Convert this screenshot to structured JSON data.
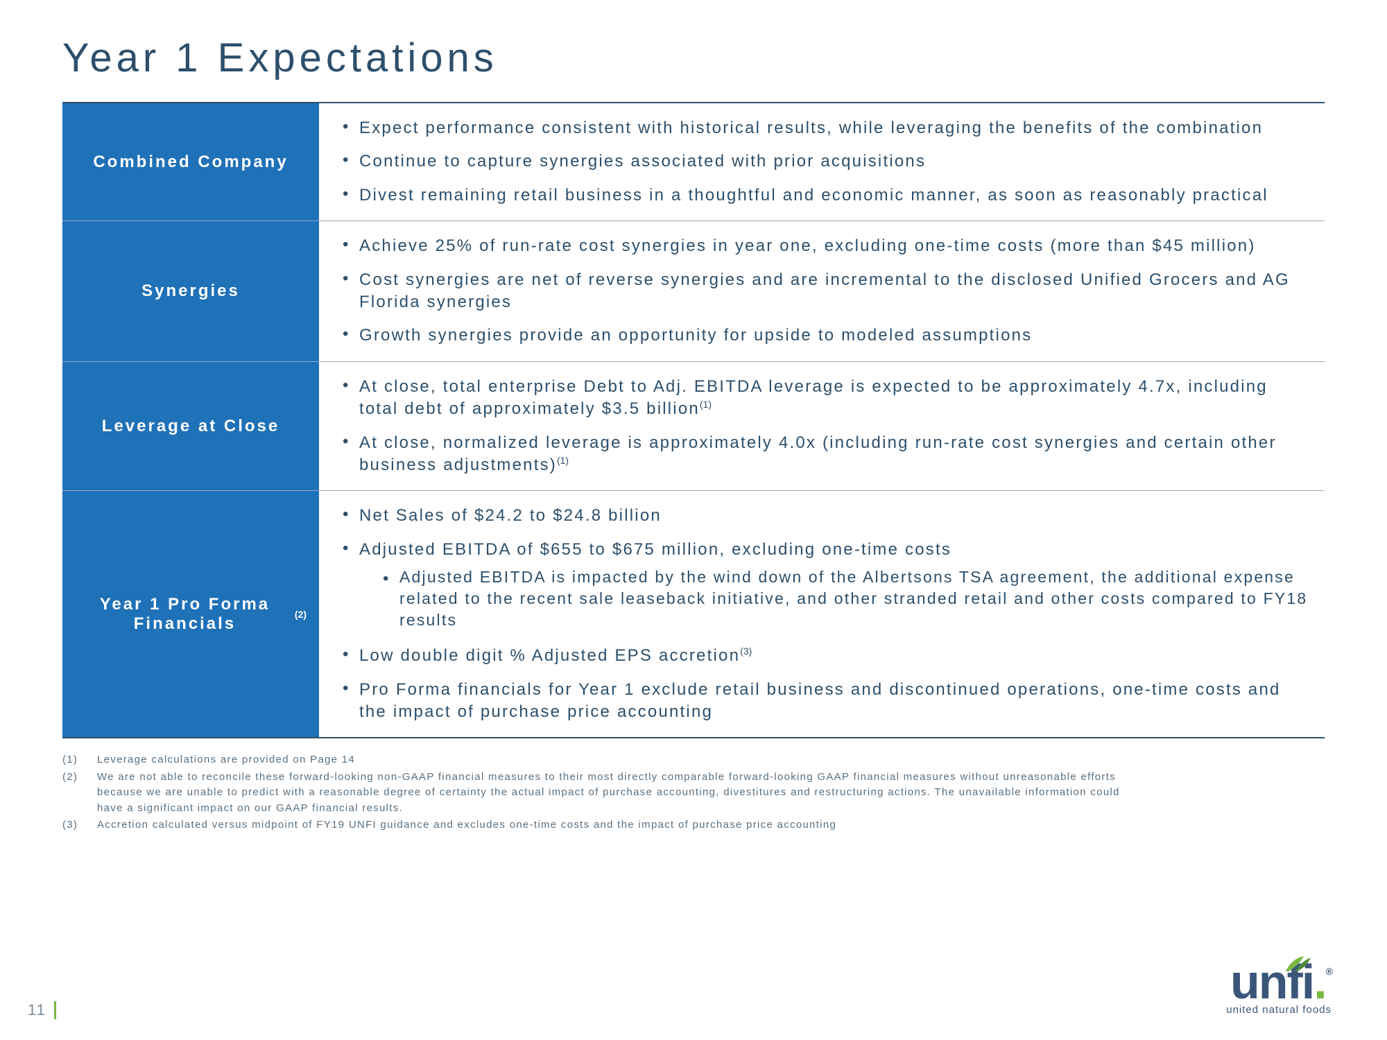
{
  "title": "Year 1 Expectations",
  "rows": [
    {
      "label": "Combined Company",
      "label_sup": "",
      "bullets": [
        {
          "text": "Expect performance consistent with historical results, while leveraging the benefits of the combination"
        },
        {
          "text": "Continue to capture synergies associated with prior acquisitions"
        },
        {
          "text": "Divest remaining retail business in a thoughtful and economic manner, as soon as reasonably practical"
        }
      ]
    },
    {
      "label": "Synergies",
      "label_sup": "",
      "bullets": [
        {
          "text": "Achieve 25% of run-rate cost synergies in year one, excluding one-time costs (more than $45 million)"
        },
        {
          "text": "Cost synergies are net of reverse synergies and are incremental to the disclosed Unified Grocers and AG Florida synergies"
        },
        {
          "text": "Growth synergies provide an opportunity for upside to modeled assumptions"
        }
      ]
    },
    {
      "label": "Leverage at Close",
      "label_sup": "",
      "bullets": [
        {
          "text": "At close, total enterprise Debt to Adj. EBITDA leverage is expected to be approximately 4.7x, including total debt of approximately $3.5 billion",
          "sup": "(1)"
        },
        {
          "text": "At close, normalized leverage is approximately 4.0x (including run-rate cost synergies and certain other business adjustments)",
          "sup": "(1)"
        }
      ]
    },
    {
      "label": "Year 1 Pro Forma Financials",
      "label_sup": "(2)",
      "bullets": [
        {
          "text": "Net Sales of $24.2 to $24.8 billion"
        },
        {
          "text": "Adjusted EBITDA of $655 to $675 million, excluding one-time costs",
          "sub": [
            {
              "text": "Adjusted EBITDA is impacted by the wind down of the Albertsons TSA agreement, the additional expense related to the recent sale leaseback initiative, and other stranded retail and other costs compared to FY18 results"
            }
          ]
        },
        {
          "text": "Low double digit % Adjusted EPS accretion",
          "sup": "(3)"
        },
        {
          "text": "Pro Forma financials for Year 1 exclude retail business and discontinued operations, one-time costs and the impact of purchase price accounting"
        }
      ]
    }
  ],
  "footnotes": [
    {
      "n": "(1)",
      "t": "Leverage calculations are provided on Page 14"
    },
    {
      "n": "(2)",
      "t": "We are not able to reconcile these forward-looking non-GAAP financial measures to their most directly comparable forward-looking GAAP financial measures without unreasonable efforts because we are unable to predict with a reasonable degree of certainty the actual impact of purchase accounting, divestitures and restructuring actions. The unavailable information could have a significant impact on our GAAP financial results."
    },
    {
      "n": "(3)",
      "t": "Accretion calculated versus midpoint of FY19 UNFI guidance and excludes one-time costs and the impact of purchase price accounting"
    }
  ],
  "page_number": "11",
  "logo": {
    "text": "unfi",
    "tagline": "united natural foods"
  }
}
